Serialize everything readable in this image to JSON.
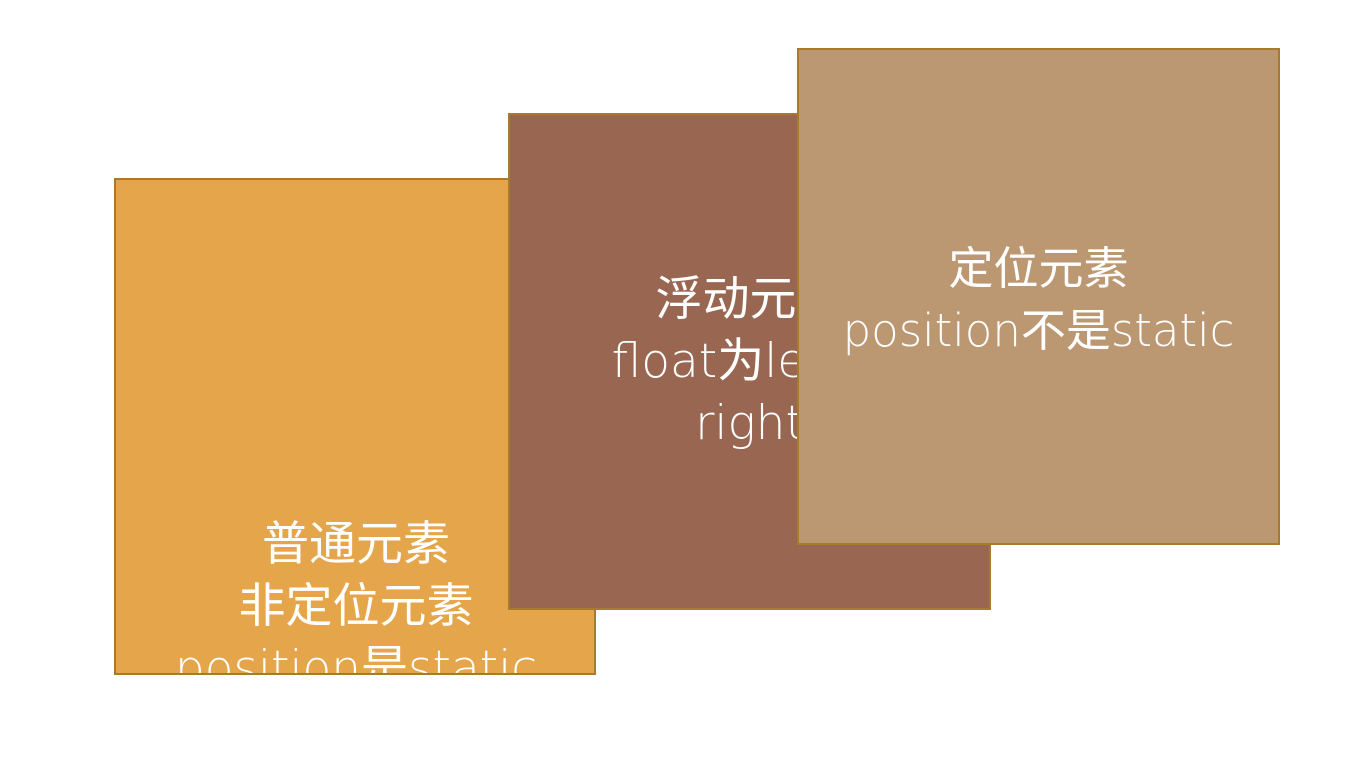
{
  "boxes": {
    "normal": {
      "lines": [
        "普通元素",
        "非定位元素",
        "position是static"
      ],
      "fill": "#e5a54a",
      "border": "#a87a2e"
    },
    "float": {
      "lines": [
        "浮动元素",
        "float为left或",
        "right"
      ],
      "fill": "#996652",
      "border": "#a87a2e"
    },
    "positioned": {
      "lines": [
        "定位元素",
        "position不是static"
      ],
      "fill": "#bc9872",
      "border": "#a87a2e"
    }
  }
}
